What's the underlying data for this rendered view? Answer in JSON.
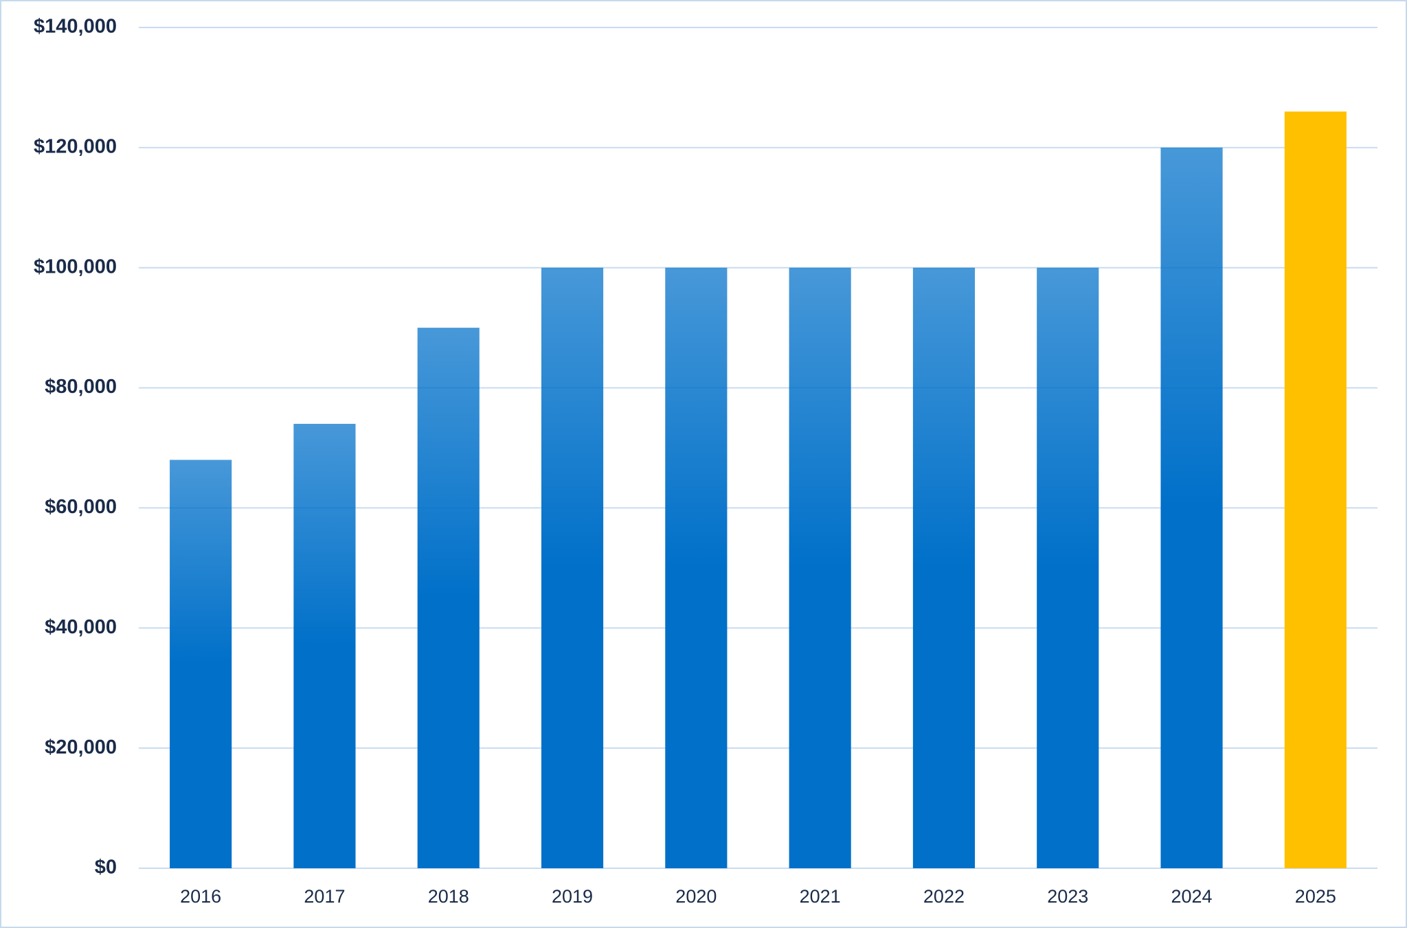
{
  "chart_data": {
    "type": "bar",
    "categories": [
      "2016",
      "2017",
      "2018",
      "2019",
      "2020",
      "2021",
      "2022",
      "2023",
      "2024",
      "2025"
    ],
    "values": [
      68000,
      74000,
      90000,
      100000,
      100000,
      100000,
      100000,
      100000,
      120000,
      126000
    ],
    "colors": [
      "#0070c9",
      "#0070c9",
      "#0070c9",
      "#0070c9",
      "#0070c9",
      "#0070c9",
      "#0070c9",
      "#0070c9",
      "#0070c9",
      "#ffc000"
    ],
    "ylim": [
      0,
      140000
    ],
    "yticks": [
      {
        "value": 0,
        "label": "$0"
      },
      {
        "value": 20000,
        "label": "$20,000"
      },
      {
        "value": 40000,
        "label": "$40,000"
      },
      {
        "value": 60000,
        "label": "$60,000"
      },
      {
        "value": 80000,
        "label": "$80,000"
      },
      {
        "value": 100000,
        "label": "$100,000"
      },
      {
        "value": 120000,
        "label": "$120,000"
      },
      {
        "value": 140000,
        "label": "$140,000"
      }
    ],
    "grid": true
  }
}
